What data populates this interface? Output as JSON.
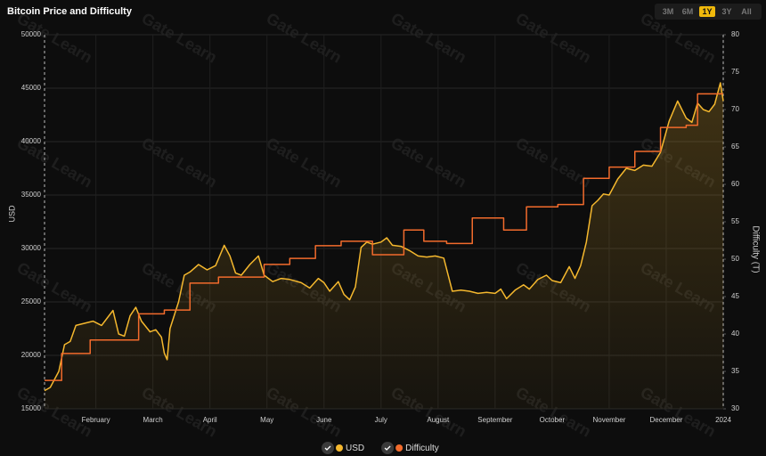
{
  "chart_data": {
    "type": "line",
    "title": "Bitcoin Price and Difficulty",
    "ylabel": "USD",
    "y2label": "Difficulty (T)",
    "watermark": "Gate Learn",
    "range_buttons": [
      "3M",
      "6M",
      "1Y",
      "3Y",
      "All"
    ],
    "active_range": "1Y",
    "xlim": [
      0.1,
      12.0
    ],
    "xticks": [
      {
        "value": 1,
        "label": "February"
      },
      {
        "value": 2,
        "label": "March"
      },
      {
        "value": 3,
        "label": "April"
      },
      {
        "value": 4,
        "label": "May"
      },
      {
        "value": 5,
        "label": "June"
      },
      {
        "value": 6,
        "label": "July"
      },
      {
        "value": 7,
        "label": "August"
      },
      {
        "value": 8,
        "label": "September"
      },
      {
        "value": 9,
        "label": "October"
      },
      {
        "value": 10,
        "label": "November"
      },
      {
        "value": 11,
        "label": "December"
      },
      {
        "value": 12,
        "label": "2024"
      }
    ],
    "ylim": [
      15000,
      50000
    ],
    "yticks": [
      15000,
      20000,
      25000,
      30000,
      35000,
      40000,
      45000,
      50000
    ],
    "y2lim": [
      30,
      80
    ],
    "y2ticks": [
      30,
      35,
      40,
      45,
      50,
      55,
      60,
      65,
      70,
      75,
      80
    ],
    "grid": true,
    "series": [
      {
        "name": "USD",
        "color": "#f5b82e",
        "area": true,
        "x": [
          0.1,
          0.2,
          0.35,
          0.45,
          0.55,
          0.65,
          0.8,
          0.95,
          1.1,
          1.2,
          1.3,
          1.4,
          1.5,
          1.6,
          1.7,
          1.8,
          1.95,
          2.05,
          2.15,
          2.2,
          2.25,
          2.3,
          2.45,
          2.55,
          2.65,
          2.8,
          2.95,
          3.1,
          3.25,
          3.35,
          3.45,
          3.55,
          3.7,
          3.85,
          3.95,
          4.1,
          4.25,
          4.4,
          4.6,
          4.75,
          4.9,
          5.0,
          5.1,
          5.25,
          5.35,
          5.45,
          5.55,
          5.65,
          5.75,
          5.85,
          6.0,
          6.1,
          6.2,
          6.35,
          6.5,
          6.65,
          6.8,
          6.95,
          7.1,
          7.25,
          7.4,
          7.55,
          7.7,
          7.85,
          8.0,
          8.1,
          8.2,
          8.35,
          8.5,
          8.6,
          8.75,
          8.9,
          9.0,
          9.15,
          9.3,
          9.4,
          9.5,
          9.6,
          9.7,
          9.8,
          9.9,
          10.0,
          10.15,
          10.3,
          10.45,
          10.6,
          10.75,
          10.9,
          11.05,
          11.2,
          11.35,
          11.45,
          11.55,
          11.65,
          11.75,
          11.85,
          11.95,
          12.0
        ],
        "values": [
          16700,
          17000,
          18500,
          21000,
          21300,
          22800,
          23000,
          23200,
          22800,
          23500,
          24200,
          22000,
          21800,
          23700,
          24500,
          23200,
          22200,
          22400,
          21700,
          20200,
          19600,
          22500,
          25000,
          27500,
          27800,
          28500,
          28000,
          28400,
          30300,
          29300,
          27700,
          27500,
          28500,
          29300,
          27500,
          26900,
          27200,
          27100,
          26800,
          26300,
          27200,
          26800,
          26000,
          26900,
          25700,
          25200,
          26400,
          30100,
          30600,
          30400,
          30600,
          31000,
          30300,
          30200,
          29800,
          29300,
          29200,
          29300,
          29100,
          26000,
          26100,
          26000,
          25800,
          25900,
          25800,
          26200,
          25300,
          26100,
          26600,
          26200,
          27100,
          27500,
          27000,
          26800,
          28300,
          27200,
          28400,
          30600,
          34000,
          34500,
          35100,
          35000,
          36500,
          37500,
          37300,
          37800,
          37700,
          39000,
          41900,
          43800,
          42200,
          41800,
          43600,
          43000,
          42800,
          43500,
          45500,
          43800
        ]
      },
      {
        "name": "Difficulty",
        "color": "#f26b2c",
        "axis": "y2",
        "step": true,
        "x": [
          0.1,
          0.4,
          0.9,
          1.75,
          2.2,
          2.65,
          3.15,
          3.95,
          4.4,
          4.85,
          5.3,
          5.85,
          6.4,
          6.75,
          7.15,
          7.6,
          8.15,
          8.55,
          9.1,
          9.55,
          10.0,
          10.45,
          10.9,
          11.35,
          11.55,
          12.0
        ],
        "values": [
          33.8,
          37.4,
          39.2,
          42.7,
          43.2,
          46.8,
          47.6,
          49.3,
          50.1,
          51.8,
          52.4,
          50.6,
          53.9,
          52.4,
          52.1,
          55.5,
          53.9,
          57.0,
          57.3,
          60.8,
          62.3,
          64.4,
          67.6,
          67.9,
          72.1,
          72.1
        ]
      }
    ]
  }
}
